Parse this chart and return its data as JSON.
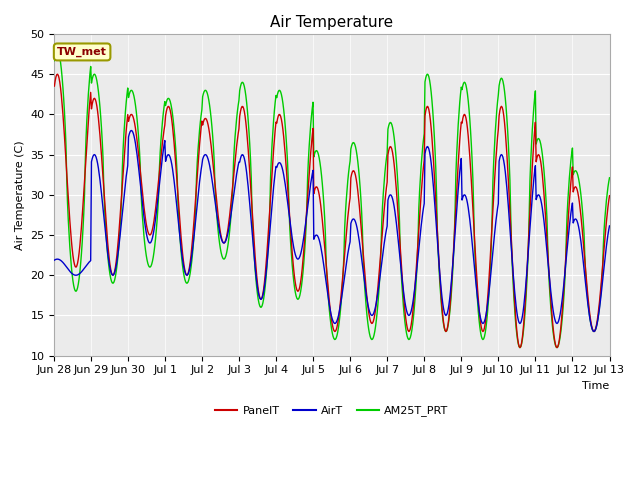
{
  "title": "Air Temperature",
  "ylabel": "Air Temperature (C)",
  "xlabel": "Time",
  "ylim": [
    10,
    50
  ],
  "yticks": [
    10,
    15,
    20,
    25,
    30,
    35,
    40,
    45,
    50
  ],
  "xtick_labels": [
    "Jun 28",
    "Jun 29",
    "Jun 30",
    "Jul 1",
    "Jul 2",
    "Jul 3",
    "Jul 4",
    "Jul 5",
    "Jul 6",
    "Jul 7",
    "Jul 8",
    "Jul 9",
    "Jul 10",
    "Jul 11",
    "Jul 12",
    "Jul 13"
  ],
  "annotation_text": "TW_met",
  "annotation_color": "#8B0000",
  "annotation_bg": "#FFFFCC",
  "annotation_border": "#999900",
  "background_color": "#EBEBEB",
  "line_colors": {
    "PanelT": "#CC0000",
    "AirT": "#0000CC",
    "AM25T_PRT": "#00CC00"
  },
  "title_fontsize": 11,
  "axis_fontsize": 8,
  "tick_fontsize": 8
}
